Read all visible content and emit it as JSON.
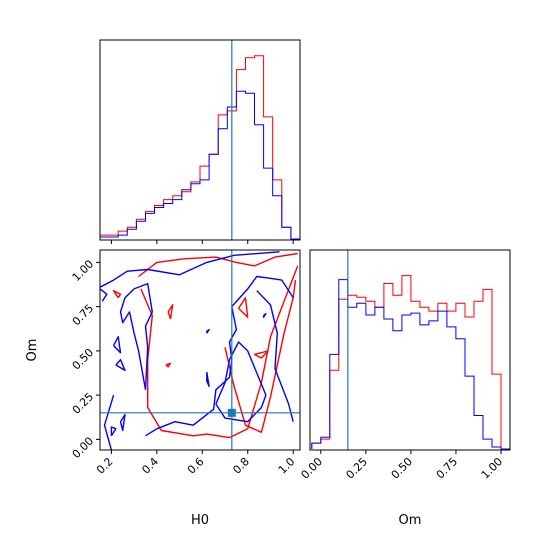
{
  "chart_data": {
    "type": "corner",
    "parameters": [
      "H0",
      "Om"
    ],
    "colors": {
      "red": "#ff0000",
      "blue": "#0000ff",
      "truth": "#1f77b4"
    },
    "truth": {
      "H0": 0.73,
      "Om": 0.15
    },
    "h0_axis": {
      "label": "H0",
      "range": [
        0.15,
        1.03
      ],
      "ticks": [
        0.2,
        0.4,
        0.6,
        0.8,
        1.0
      ],
      "tick_labels": [
        "0.2",
        "0.4",
        "0.6",
        "0.8",
        "1.0"
      ]
    },
    "om_axis_y": {
      "label": "Om",
      "range": [
        -0.06,
        1.07
      ],
      "ticks": [
        0.0,
        0.25,
        0.5,
        0.75,
        1.0
      ],
      "tick_labels": [
        "0.00",
        "0.25",
        "0.50",
        "0.75",
        "1.00"
      ]
    },
    "om_axis_x": {
      "label": "Om",
      "range": [
        -0.06,
        1.05
      ],
      "ticks": [
        0.0,
        0.25,
        0.5,
        0.75,
        1.0
      ],
      "tick_labels": [
        "0.00",
        "0.25",
        "0.50",
        "0.75",
        "1.00"
      ]
    },
    "h0_hist": {
      "bin_edges": [
        0.15,
        0.19,
        0.23,
        0.27,
        0.31,
        0.35,
        0.39,
        0.43,
        0.47,
        0.51,
        0.55,
        0.59,
        0.63,
        0.67,
        0.71,
        0.75,
        0.79,
        0.83,
        0.87,
        0.91,
        0.95,
        0.99,
        1.03
      ],
      "red": [
        0.02,
        0.02,
        0.04,
        0.06,
        0.1,
        0.14,
        0.17,
        0.2,
        0.22,
        0.24,
        0.29,
        0.37,
        0.43,
        0.63,
        0.65,
        0.86,
        0.92,
        0.93,
        0.62,
        0.3,
        0.06,
        0.0
      ],
      "blue": [
        0.01,
        0.01,
        0.02,
        0.05,
        0.09,
        0.13,
        0.16,
        0.18,
        0.2,
        0.25,
        0.28,
        0.3,
        0.43,
        0.56,
        0.67,
        0.75,
        0.74,
        0.58,
        0.36,
        0.22,
        0.06,
        0.0
      ]
    },
    "om_hist": {
      "bin_edges": [
        -0.05,
        0.0,
        0.05,
        0.1,
        0.15,
        0.2,
        0.25,
        0.3,
        0.35,
        0.4,
        0.45,
        0.5,
        0.55,
        0.6,
        0.65,
        0.7,
        0.75,
        0.8,
        0.85,
        0.9,
        0.95,
        1.0,
        1.05
      ],
      "red": [
        0.03,
        0.05,
        0.4,
        0.76,
        0.78,
        0.77,
        0.75,
        0.72,
        0.84,
        0.78,
        0.88,
        0.75,
        0.72,
        0.7,
        0.74,
        0.7,
        0.74,
        0.67,
        0.75,
        0.81,
        0.38,
        0.0
      ],
      "blue": [
        0.03,
        0.06,
        0.48,
        0.86,
        0.72,
        0.74,
        0.68,
        0.72,
        0.66,
        0.6,
        0.68,
        0.69,
        0.63,
        0.65,
        0.7,
        0.62,
        0.56,
        0.37,
        0.17,
        0.05,
        0.01,
        0.0
      ]
    },
    "contours": {
      "red": [
        [
          [
            0.32,
            0.92
          ],
          [
            0.4,
            1.0
          ],
          [
            0.52,
            1.02
          ],
          [
            0.66,
            1.03
          ],
          [
            0.75,
            1.0
          ],
          [
            0.83,
            0.98
          ],
          [
            0.92,
            1.03
          ],
          [
            1.02,
            1.05
          ]
        ],
        [
          [
            0.33,
            0.85
          ],
          [
            0.38,
            0.7
          ],
          [
            0.36,
            0.45
          ],
          [
            0.36,
            0.18
          ],
          [
            0.42,
            0.05
          ],
          [
            0.56,
            0.02
          ],
          [
            0.62,
            0.03
          ],
          [
            0.72,
            0.01
          ],
          [
            0.8,
            0.06
          ],
          [
            0.86,
            0.32
          ],
          [
            0.9,
            0.58
          ],
          [
            0.96,
            0.78
          ],
          [
            1.02,
            0.98
          ]
        ],
        [
          [
            0.7,
            0.52
          ],
          [
            0.74,
            0.3
          ],
          [
            0.79,
            0.08
          ],
          [
            0.86,
            0.04
          ],
          [
            0.9,
            0.24
          ],
          [
            0.96,
            0.6
          ],
          [
            1.0,
            0.8
          ],
          [
            1.01,
            0.9
          ]
        ],
        [
          [
            0.23,
            0.8
          ],
          [
            0.24,
            0.82
          ],
          [
            0.21,
            0.84
          ],
          [
            0.23,
            0.8
          ]
        ],
        [
          [
            0.46,
            0.68
          ],
          [
            0.45,
            0.72
          ],
          [
            0.47,
            0.76
          ],
          [
            0.46,
            0.68
          ]
        ],
        [
          [
            0.76,
            0.74
          ],
          [
            0.8,
            0.69
          ],
          [
            0.79,
            0.8
          ],
          [
            0.76,
            0.74
          ]
        ],
        [
          [
            0.89,
            0.5
          ],
          [
            0.86,
            0.46
          ],
          [
            0.83,
            0.48
          ],
          [
            0.89,
            0.5
          ]
        ],
        [
          [
            0.44,
            0.42
          ],
          [
            0.45,
            0.41
          ],
          [
            0.46,
            0.43
          ],
          [
            0.44,
            0.42
          ]
        ]
      ],
      "blue": [
        [
          [
            0.15,
            0.86
          ],
          [
            0.21,
            0.9
          ],
          [
            0.27,
            0.95
          ],
          [
            0.36,
            0.96
          ],
          [
            0.5,
            0.93
          ],
          [
            0.62,
            1.0
          ],
          [
            0.74,
            1.04
          ],
          [
            0.94,
            1.06
          ]
        ],
        [
          [
            0.15,
            0.85
          ],
          [
            0.18,
            0.82
          ],
          [
            0.16,
            0.78
          ]
        ],
        [
          [
            0.21,
            0.25
          ],
          [
            0.17,
            0.08
          ],
          [
            0.2,
            -0.06
          ]
        ],
        [
          [
            0.35,
            0.02
          ],
          [
            0.4,
            0.06
          ],
          [
            0.48,
            0.1
          ],
          [
            0.56,
            0.08
          ],
          [
            0.6,
            0.12
          ],
          [
            0.65,
            0.17
          ],
          [
            0.66,
            0.28
          ],
          [
            0.72,
            0.35
          ],
          [
            0.73,
            0.45
          ],
          [
            0.72,
            0.55
          ],
          [
            0.75,
            0.62
          ],
          [
            0.73,
            0.75
          ],
          [
            0.8,
            0.85
          ],
          [
            0.84,
            0.92
          ],
          [
            0.9,
            0.91
          ],
          [
            0.95,
            0.9
          ],
          [
            1.0,
            0.8
          ]
        ],
        [
          [
            0.84,
            0.84
          ],
          [
            0.9,
            0.76
          ],
          [
            0.93,
            0.6
          ],
          [
            0.92,
            0.4
          ],
          [
            0.98,
            0.2
          ],
          [
            1.0,
            0.1
          ]
        ],
        [
          [
            0.66,
            0.2
          ],
          [
            0.7,
            0.12
          ],
          [
            0.8,
            0.1
          ],
          [
            0.86,
            0.18
          ],
          [
            0.88,
            0.25
          ],
          [
            0.8,
            0.5
          ],
          [
            0.76,
            0.55
          ],
          [
            0.72,
            0.45
          ],
          [
            0.7,
            0.32
          ],
          [
            0.66,
            0.2
          ]
        ],
        [
          [
            0.35,
            0.28
          ],
          [
            0.32,
            0.5
          ],
          [
            0.3,
            0.6
          ],
          [
            0.28,
            0.72
          ],
          [
            0.25,
            0.66
          ],
          [
            0.24,
            0.72
          ],
          [
            0.26,
            0.8
          ],
          [
            0.3,
            0.85
          ],
          [
            0.36,
            0.88
          ],
          [
            0.38,
            0.72
          ],
          [
            0.35,
            0.64
          ],
          [
            0.36,
            0.52
          ],
          [
            0.35,
            0.28
          ]
        ],
        [
          [
            0.21,
            0.53
          ],
          [
            0.23,
            0.58
          ],
          [
            0.24,
            0.49
          ],
          [
            0.21,
            0.53
          ]
        ],
        [
          [
            0.22,
            0.42
          ],
          [
            0.24,
            0.45
          ],
          [
            0.26,
            0.39
          ],
          [
            0.22,
            0.42
          ]
        ],
        [
          [
            0.62,
            0.38
          ],
          [
            0.63,
            0.3
          ],
          [
            0.62,
            0.33
          ],
          [
            0.62,
            0.38
          ]
        ],
        [
          [
            0.62,
            0.6
          ],
          [
            0.63,
            0.62
          ],
          [
            0.62,
            0.61
          ],
          [
            0.62,
            0.6
          ]
        ],
        [
          [
            0.87,
            0.7
          ],
          [
            0.88,
            0.71
          ],
          [
            0.87,
            0.69
          ],
          [
            0.87,
            0.7
          ]
        ],
        [
          [
            0.24,
            0.1
          ],
          [
            0.26,
            0.14
          ],
          [
            0.25,
            0.05
          ],
          [
            0.24,
            0.1
          ]
        ],
        [
          [
            0.2,
            0.02
          ],
          [
            0.22,
            0.06
          ],
          [
            0.2,
            0.07
          ],
          [
            0.2,
            0.02
          ]
        ]
      ]
    }
  }
}
